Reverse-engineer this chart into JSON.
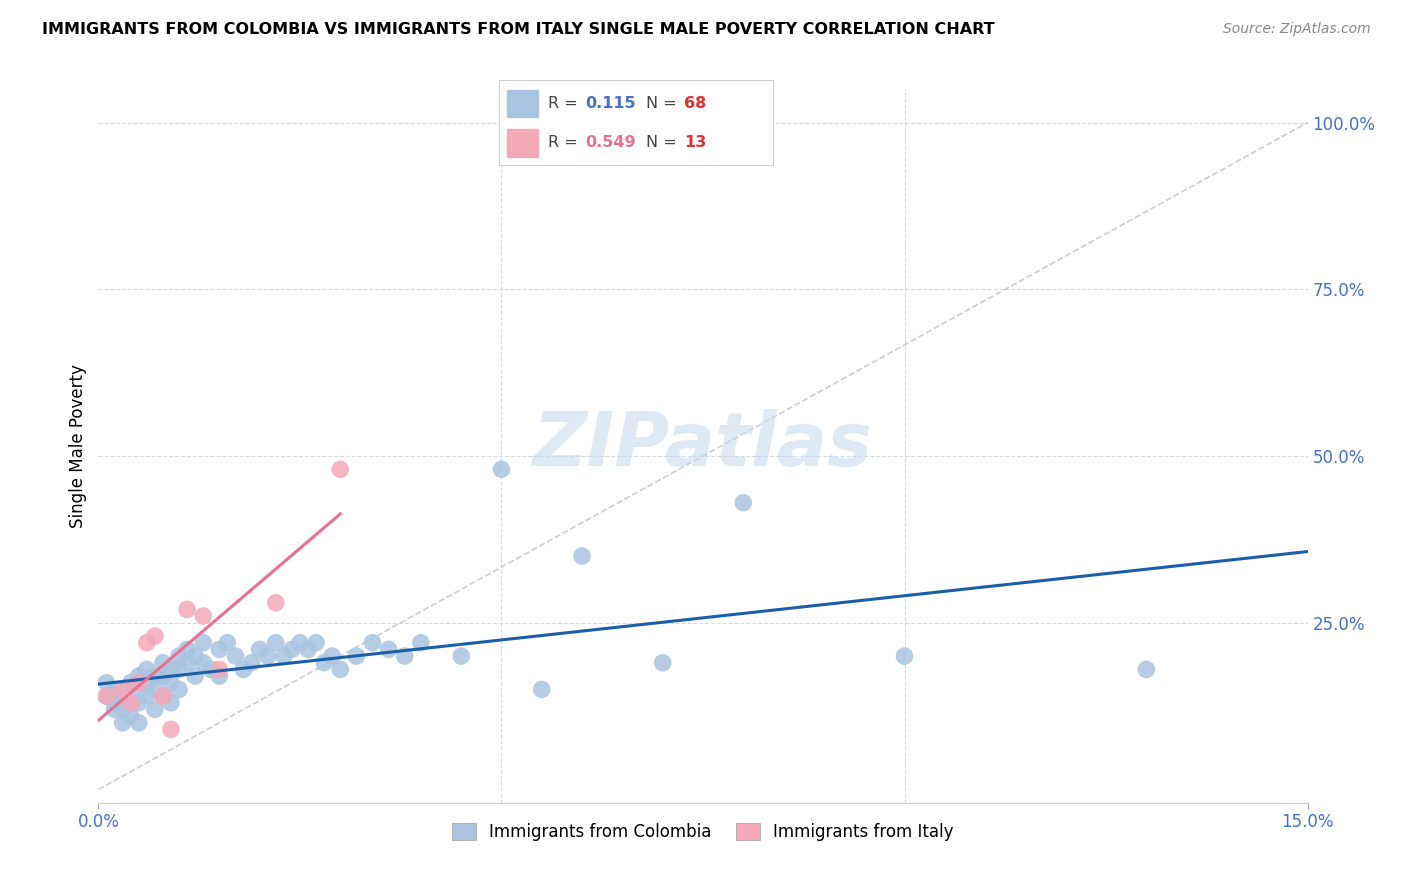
{
  "title": "IMMIGRANTS FROM COLOMBIA VS IMMIGRANTS FROM ITALY SINGLE MALE POVERTY CORRELATION CHART",
  "source": "Source: ZipAtlas.com",
  "ylabel": "Single Male Poverty",
  "ytick_labels": [
    "",
    "25.0%",
    "50.0%",
    "75.0%",
    "100.0%"
  ],
  "ytick_positions": [
    0,
    0.25,
    0.5,
    0.75,
    1.0
  ],
  "xlim": [
    0.0,
    0.15
  ],
  "ylim": [
    -0.02,
    1.05
  ],
  "colombia_R": "0.115",
  "colombia_N": "68",
  "italy_R": "0.549",
  "italy_N": "13",
  "colombia_color": "#a8c4e0",
  "italy_color": "#f4a8b8",
  "colombia_line_color": "#1a5fa8",
  "italy_line_color": "#e87090",
  "diagonal_color": "#c8c8c8",
  "watermark": "ZIPatlas",
  "colombia_x": [
    0.001,
    0.001,
    0.002,
    0.002,
    0.002,
    0.003,
    0.003,
    0.003,
    0.003,
    0.004,
    0.004,
    0.004,
    0.005,
    0.005,
    0.005,
    0.005,
    0.006,
    0.006,
    0.006,
    0.007,
    0.007,
    0.007,
    0.008,
    0.008,
    0.008,
    0.009,
    0.009,
    0.009,
    0.01,
    0.01,
    0.01,
    0.011,
    0.011,
    0.012,
    0.012,
    0.013,
    0.013,
    0.014,
    0.015,
    0.015,
    0.016,
    0.017,
    0.018,
    0.019,
    0.02,
    0.021,
    0.022,
    0.023,
    0.024,
    0.025,
    0.026,
    0.027,
    0.028,
    0.029,
    0.03,
    0.032,
    0.034,
    0.036,
    0.038,
    0.04,
    0.045,
    0.05,
    0.055,
    0.06,
    0.07,
    0.08,
    0.1,
    0.13
  ],
  "colombia_y": [
    0.16,
    0.14,
    0.15,
    0.13,
    0.12,
    0.15,
    0.14,
    0.12,
    0.1,
    0.16,
    0.13,
    0.11,
    0.17,
    0.15,
    0.13,
    0.1,
    0.18,
    0.16,
    0.14,
    0.17,
    0.15,
    0.12,
    0.19,
    0.17,
    0.14,
    0.18,
    0.16,
    0.13,
    0.2,
    0.18,
    0.15,
    0.21,
    0.19,
    0.2,
    0.17,
    0.22,
    0.19,
    0.18,
    0.21,
    0.17,
    0.22,
    0.2,
    0.18,
    0.19,
    0.21,
    0.2,
    0.22,
    0.2,
    0.21,
    0.22,
    0.21,
    0.22,
    0.19,
    0.2,
    0.18,
    0.2,
    0.22,
    0.21,
    0.2,
    0.22,
    0.2,
    0.48,
    0.15,
    0.35,
    0.19,
    0.43,
    0.2,
    0.18
  ],
  "italy_x": [
    0.001,
    0.003,
    0.004,
    0.005,
    0.006,
    0.007,
    0.008,
    0.009,
    0.011,
    0.013,
    0.015,
    0.022,
    0.03
  ],
  "italy_y": [
    0.14,
    0.15,
    0.13,
    0.16,
    0.22,
    0.23,
    0.14,
    0.09,
    0.27,
    0.26,
    0.18,
    0.28,
    0.48
  ]
}
